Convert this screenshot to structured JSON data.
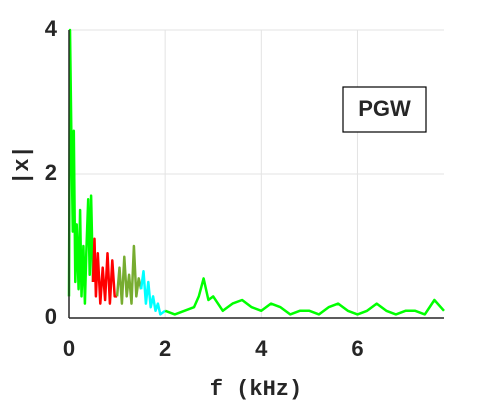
{
  "chart_data": {
    "type": "line",
    "xlabel": "f (kHz)",
    "ylabel": "|x|",
    "annotation": "PGW",
    "xlim": [
      0,
      7.8
    ],
    "xticks": [
      0,
      2,
      4,
      6
    ],
    "ylim": [
      0,
      4
    ],
    "yticks": [
      0,
      2,
      4
    ],
    "grid": true,
    "series": [
      {
        "color": "#00ff00",
        "x": [
          0,
          0.02,
          0.05,
          0.08,
          0.1,
          0.13,
          0.16,
          0.2,
          0.23,
          0.26,
          0.3,
          0.33,
          0.36,
          0.4,
          0.43,
          0.46,
          0.5
        ],
        "values": [
          0.3,
          4.0,
          2.5,
          1.2,
          2.6,
          0.5,
          1.3,
          0.4,
          1.5,
          0.3,
          1.0,
          0.2,
          0.9,
          1.65,
          0.6,
          1.7,
          0.5
        ]
      },
      {
        "color": "#ff0000",
        "x": [
          0.5,
          0.53,
          0.56,
          0.6,
          0.65,
          0.7,
          0.75,
          0.8,
          0.85,
          0.9,
          0.95,
          1.0
        ],
        "values": [
          0.5,
          1.1,
          0.3,
          0.9,
          0.2,
          0.7,
          0.25,
          0.9,
          0.2,
          0.8,
          0.3,
          0.3
        ]
      },
      {
        "color": "#77ac30",
        "x": [
          1.0,
          1.05,
          1.1,
          1.15,
          1.2,
          1.25,
          1.3,
          1.35,
          1.4,
          1.45,
          1.5
        ],
        "values": [
          0.3,
          0.7,
          0.2,
          0.85,
          0.3,
          0.6,
          0.2,
          1.0,
          0.3,
          0.55,
          0.4
        ]
      },
      {
        "color": "#00ffff",
        "x": [
          1.5,
          1.55,
          1.6,
          1.65,
          1.7,
          1.75,
          1.8,
          1.85,
          1.9,
          2.0
        ],
        "values": [
          0.4,
          0.65,
          0.2,
          0.5,
          0.15,
          0.3,
          0.1,
          0.2,
          0.05,
          0.1
        ]
      },
      {
        "color": "#00ff00",
        "x": [
          2.0,
          2.2,
          2.4,
          2.6,
          2.7,
          2.8,
          2.9,
          3.0,
          3.2,
          3.4,
          3.6,
          3.8,
          4.0,
          4.2,
          4.4,
          4.6,
          4.8,
          5.0,
          5.2,
          5.4,
          5.6,
          5.8,
          6.0,
          6.2,
          6.4,
          6.6,
          6.8,
          7.0,
          7.2,
          7.4,
          7.6,
          7.8
        ],
        "values": [
          0.1,
          0.05,
          0.1,
          0.15,
          0.3,
          0.55,
          0.25,
          0.3,
          0.1,
          0.2,
          0.25,
          0.15,
          0.1,
          0.2,
          0.15,
          0.05,
          0.1,
          0.1,
          0.05,
          0.15,
          0.2,
          0.1,
          0.05,
          0.1,
          0.2,
          0.1,
          0.05,
          0.1,
          0.1,
          0.05,
          0.25,
          0.1
        ]
      }
    ]
  }
}
